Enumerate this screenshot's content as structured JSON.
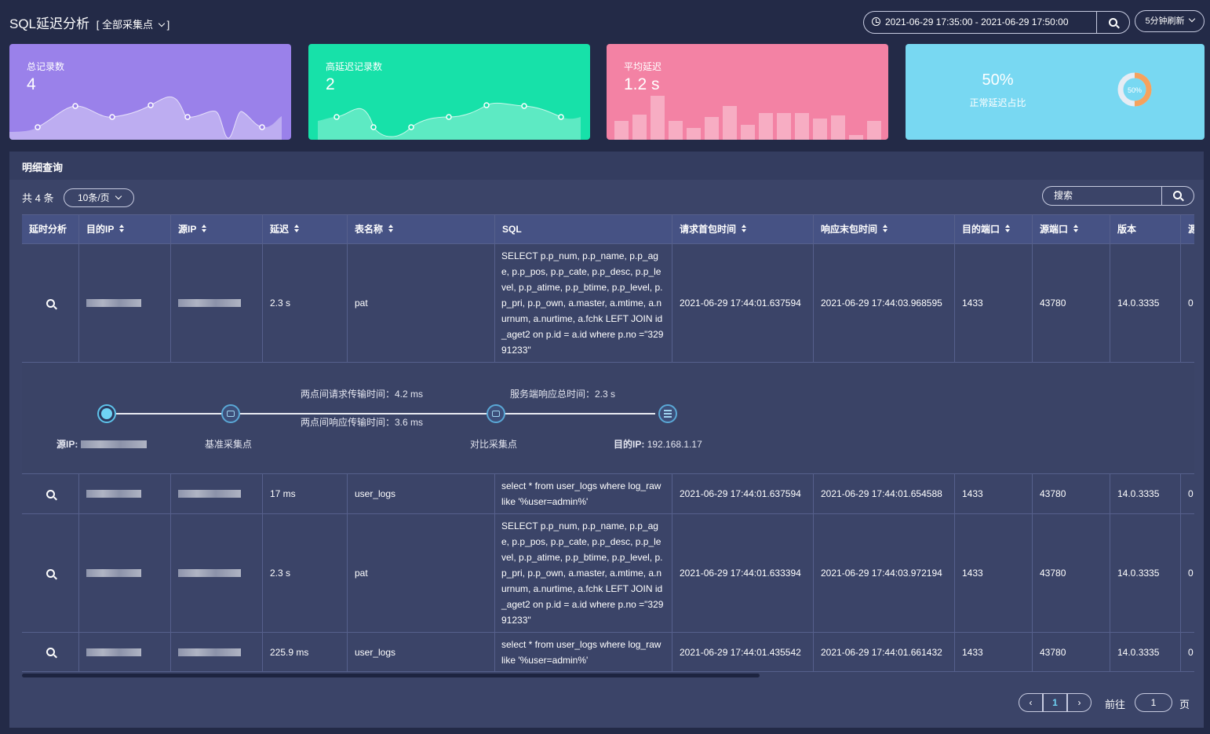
{
  "header": {
    "title": "SQL延迟分析",
    "collector_select": "全部采集点",
    "time_range": "2021-06-29 17:35:00  -  2021-06-29 17:50:00",
    "refresh": "5分钟刷新"
  },
  "cards": [
    {
      "label": "总记录数",
      "value": "4"
    },
    {
      "label": "高延迟记录数",
      "value": "2"
    },
    {
      "label": "平均延迟",
      "value": "1.2 s"
    },
    {
      "percent": "50%",
      "label": "正常延迟占比",
      "ring": "50%",
      "ring_value": 0.5
    }
  ],
  "panel": {
    "title": "明细查询",
    "total": "共 4 条",
    "page_size": "10条/页",
    "search_placeholder": "搜索"
  },
  "columns": [
    "延时分析",
    "目的IP",
    "源IP",
    "延迟",
    "表名称",
    "SQL",
    "请求首包时间",
    "响应末包时间",
    "目的端口",
    "源端口",
    "版本",
    "源"
  ],
  "rows": [
    {
      "delay": "2.3 s",
      "table": "pat",
      "sql": "SELECT p.p_num, p.p_name, p.p_age, p.p_pos, p.p_cate, p.p_desc, p.p_level, p.p_atime, p.p_btime, p.p_level, p.p_pri, p.p_own, a.master, a.mtime, a.nurnum, a.nurtime, a.fchk LEFT JOIN id_aget2 on p.id = a.id where p.no =\"32991233\"",
      "req_time": "2021-06-29 17:44:01.637594",
      "resp_time": "2021-06-29 17:44:03.968595",
      "dst_port": "1433",
      "src_port": "43780",
      "version": "14.0.3335",
      "extra": "0"
    },
    {
      "delay": "17 ms",
      "table": "user_logs",
      "sql": "select * from user_logs where log_raw like '%user=admin%'",
      "req_time": "2021-06-29 17:44:01.637594",
      "resp_time": "2021-06-29 17:44:01.654588",
      "dst_port": "1433",
      "src_port": "43780",
      "version": "14.0.3335",
      "extra": "0"
    },
    {
      "delay": "2.3 s",
      "table": "pat",
      "sql": "SELECT p.p_num, p.p_name, p.p_age, p.p_pos, p.p_cate, p.p_desc, p.p_level, p.p_atime, p.p_btime, p.p_level, p.p_pri, p.p_own, a.master, a.mtime, a.nurnum, a.nurtime, a.fchk LEFT JOIN id_aget2 on p.id = a.id where p.no =\"32991233\"",
      "req_time": "2021-06-29 17:44:01.633394",
      "resp_time": "2021-06-29 17:44:03.972194",
      "dst_port": "1433",
      "src_port": "43780",
      "version": "14.0.3335",
      "extra": "0"
    },
    {
      "delay": "225.9 ms",
      "table": "user_logs",
      "sql": "select * from user_logs where log_raw like '%user=admin%'",
      "req_time": "2021-06-29 17:44:01.435542",
      "resp_time": "2021-06-29 17:44:01.661432",
      "dst_port": "1433",
      "src_port": "43780",
      "version": "14.0.3335",
      "extra": "0"
    }
  ],
  "detail": {
    "req_transfer": "两点间请求传输时间：4.2 ms",
    "resp_transfer": "两点间响应传输时间：3.6 ms",
    "server_resp": "服务端响应总时间：2.3 s",
    "src_label": "源IP:",
    "base_node": "基准采集点",
    "compare_node": "对比采集点",
    "dst_label": "目的IP:",
    "dst_ip": "192.168.1.17"
  },
  "pagination": {
    "current": "1",
    "goto_label": "前往",
    "goto_value": "1",
    "page_suffix": "页"
  }
}
